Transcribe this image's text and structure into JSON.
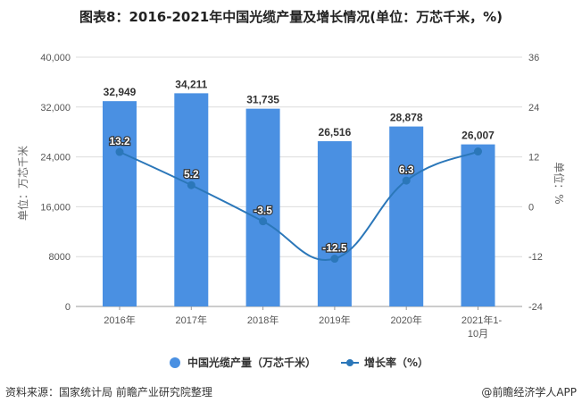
{
  "title": "图表8：2016-2021年中国光缆产量及增长情况(单位：万芯千米，%)",
  "left_axis_title": "单位：万芯千米",
  "right_axis_title": "单位：%",
  "legend": {
    "bar_label": "中国光缆产量（万芯千米）",
    "line_label": "增长率（%）"
  },
  "footer": {
    "source": "资料来源：国家统计局 前瞻产业研究院整理",
    "credit": "@前瞻经济学人APP"
  },
  "colors": {
    "bar": "#4a90e2",
    "line": "#2b77b9"
  },
  "chart_data": {
    "type": "bar",
    "title": "图表8：2016-2021年中国光缆产量及增长情况(单位：万芯千米，%)",
    "categories": [
      "2016年",
      "2017年",
      "2018年",
      "2019年",
      "2020年",
      "2021年1-10月"
    ],
    "series": [
      {
        "name": "中国光缆产量（万芯千米）",
        "type": "bar",
        "axis": "left",
        "values": [
          32949,
          34211,
          31735,
          26516,
          28878,
          26007
        ],
        "labels": [
          "32,949",
          "34,211",
          "31,735",
          "26,516",
          "28,878",
          "26,007"
        ]
      },
      {
        "name": "增长率（%）",
        "type": "line",
        "axis": "right",
        "values": [
          13.2,
          5.2,
          -3.5,
          -12.5,
          6.3,
          13.3
        ],
        "labels": [
          "13.2",
          "5.2",
          "-3.5",
          "-12.5",
          "6.3",
          ""
        ]
      }
    ],
    "ylabel": "单位：万芯千米",
    "ylabel_right": "单位：%",
    "ylim": [
      0,
      40000
    ],
    "ylim_right": [
      -24,
      36
    ],
    "yticks": [
      "0",
      "8000",
      "16,000",
      "24,000",
      "32,000",
      "40,000"
    ],
    "yticks_right": [
      "-24",
      "-12",
      "0",
      "12",
      "24",
      "36"
    ],
    "grid": true,
    "legend_position": "bottom"
  }
}
